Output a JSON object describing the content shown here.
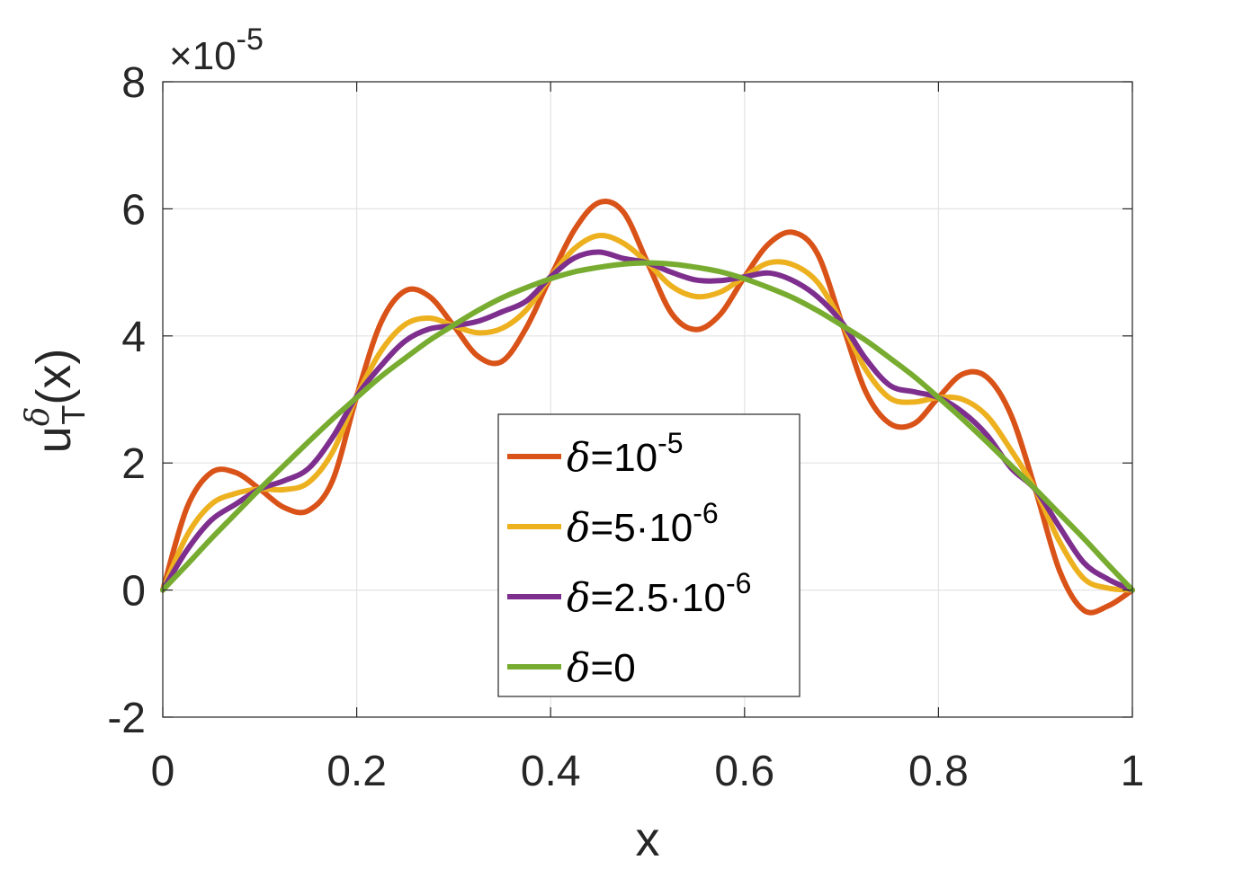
{
  "chart_data": {
    "type": "line",
    "title": "",
    "xlabel": "x",
    "ylabel_main": "u",
    "ylabel_sup": "δ",
    "ylabel_sub": "T",
    "ylabel_tail": "(x)",
    "xlim": [
      0,
      1
    ],
    "ylim": [
      -2,
      8
    ],
    "y_scale_multiplier": {
      "base": "×10",
      "exponent": "-5"
    },
    "xticks": [
      0,
      0.2,
      0.4,
      0.6,
      0.8,
      1
    ],
    "xtick_labels": [
      "0",
      "0.2",
      "0.4",
      "0.6",
      "0.8",
      "1"
    ],
    "yticks": [
      -2,
      0,
      2,
      4,
      6,
      8
    ],
    "ytick_labels": [
      "-2",
      "0",
      "2",
      "4",
      "6",
      "8"
    ],
    "grid": true,
    "legend_position": "center-bottom",
    "series": [
      {
        "delta": "δ",
        "label_base": "=10",
        "label_exp": "-5",
        "color": "#D95319",
        "x": [
          0,
          0.025,
          0.05,
          0.075,
          0.1,
          0.125,
          0.15,
          0.175,
          0.2,
          0.225,
          0.25,
          0.275,
          0.3,
          0.325,
          0.35,
          0.375,
          0.4,
          0.425,
          0.45,
          0.475,
          0.5,
          0.525,
          0.55,
          0.575,
          0.6,
          0.625,
          0.65,
          0.675,
          0.7,
          0.725,
          0.75,
          0.775,
          0.8,
          0.825,
          0.85,
          0.875,
          0.9,
          0.925,
          0.95,
          0.975,
          1
        ],
        "y": [
          0,
          1.3,
          1.85,
          1.85,
          1.59,
          1.3,
          1.25,
          1.72,
          3.05,
          4.21,
          4.71,
          4.62,
          4.16,
          3.68,
          3.6,
          4.13,
          4.93,
          5.68,
          6.1,
          5.95,
          5.15,
          4.35,
          4.1,
          4.34,
          4.93,
          5.45,
          5.63,
          5.3,
          4.22,
          3.12,
          2.62,
          2.62,
          3.03,
          3.4,
          3.35,
          2.75,
          1.58,
          0.3,
          -0.32,
          -0.25,
          0
        ]
      },
      {
        "delta": "δ",
        "label_base": "=5·10",
        "label_exp": "-6",
        "color": "#EDB120",
        "x": [
          0,
          0.025,
          0.05,
          0.075,
          0.1,
          0.125,
          0.15,
          0.175,
          0.2,
          0.225,
          0.25,
          0.275,
          0.3,
          0.325,
          0.35,
          0.375,
          0.4,
          0.425,
          0.45,
          0.475,
          0.5,
          0.525,
          0.55,
          0.575,
          0.6,
          0.625,
          0.65,
          0.675,
          0.7,
          0.725,
          0.75,
          0.775,
          0.8,
          0.825,
          0.85,
          0.875,
          0.9,
          0.925,
          0.95,
          0.975,
          1
        ],
        "y": [
          0,
          0.86,
          1.35,
          1.52,
          1.59,
          1.58,
          1.69,
          2.17,
          3.05,
          3.76,
          4.18,
          4.28,
          4.16,
          4.05,
          4.12,
          4.41,
          4.93,
          5.38,
          5.58,
          5.46,
          5.15,
          4.78,
          4.62,
          4.69,
          4.93,
          5.15,
          5.12,
          4.85,
          4.22,
          3.47,
          3.02,
          2.96,
          3.03,
          3.0,
          2.74,
          2.2,
          1.58,
          0.76,
          0.18,
          0.03,
          0
        ]
      },
      {
        "delta": "δ",
        "label_base": "=2.5·10",
        "label_exp": "-6",
        "color": "#7E2F8E",
        "x": [
          0,
          0.025,
          0.05,
          0.075,
          0.1,
          0.125,
          0.15,
          0.175,
          0.2,
          0.225,
          0.25,
          0.275,
          0.3,
          0.325,
          0.35,
          0.375,
          0.4,
          0.425,
          0.45,
          0.475,
          0.5,
          0.525,
          0.55,
          0.575,
          0.6,
          0.625,
          0.65,
          0.675,
          0.7,
          0.725,
          0.75,
          0.775,
          0.8,
          0.825,
          0.85,
          0.875,
          0.9,
          0.925,
          0.95,
          0.975,
          1
        ],
        "y": [
          0,
          0.63,
          1.1,
          1.35,
          1.59,
          1.72,
          1.91,
          2.4,
          3.05,
          3.53,
          3.92,
          4.11,
          4.16,
          4.23,
          4.38,
          4.55,
          4.93,
          5.23,
          5.32,
          5.22,
          5.15,
          5.0,
          4.88,
          4.87,
          4.93,
          4.99,
          4.87,
          4.62,
          4.22,
          3.64,
          3.22,
          3.12,
          3.03,
          2.8,
          2.44,
          1.92,
          1.58,
          0.99,
          0.43,
          0.17,
          0
        ]
      },
      {
        "delta": "δ",
        "label_base": "=0",
        "label_exp": "",
        "color": "#77AC30",
        "x": [
          0,
          0.025,
          0.05,
          0.075,
          0.1,
          0.125,
          0.15,
          0.175,
          0.2,
          0.225,
          0.25,
          0.275,
          0.3,
          0.325,
          0.35,
          0.375,
          0.4,
          0.425,
          0.45,
          0.475,
          0.5,
          0.525,
          0.55,
          0.575,
          0.6,
          0.625,
          0.65,
          0.675,
          0.7,
          0.725,
          0.75,
          0.775,
          0.8,
          0.825,
          0.85,
          0.875,
          0.9,
          0.925,
          0.95,
          0.975,
          1
        ],
        "y": [
          0,
          0.4,
          0.81,
          1.2,
          1.59,
          1.96,
          2.33,
          2.69,
          3.03,
          3.36,
          3.65,
          3.93,
          4.17,
          4.4,
          4.6,
          4.76,
          4.9,
          5.01,
          5.08,
          5.13,
          5.15,
          5.13,
          5.08,
          5.01,
          4.9,
          4.76,
          4.6,
          4.4,
          4.17,
          3.93,
          3.65,
          3.36,
          3.03,
          2.69,
          2.33,
          1.96,
          1.59,
          1.2,
          0.81,
          0.4,
          0
        ]
      }
    ]
  }
}
